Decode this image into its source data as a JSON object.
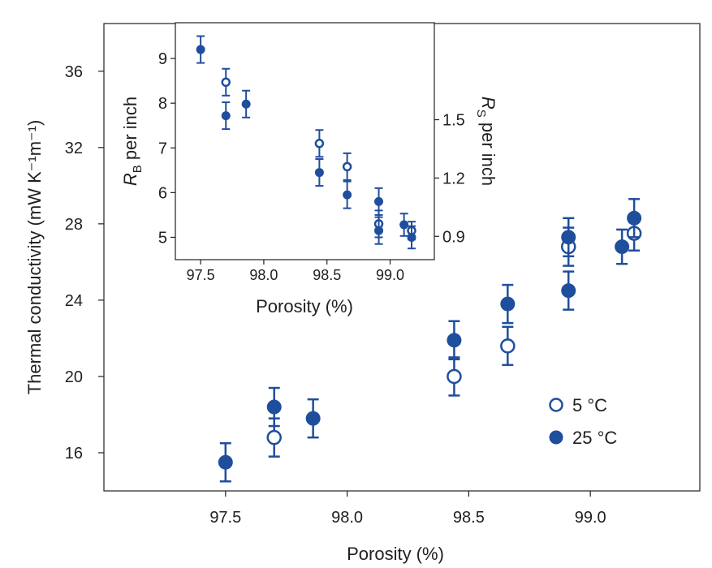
{
  "chart_data": [
    {
      "type": "scatter",
      "xlabel": "Porosity (%)",
      "ylabel": "Thermal conductivity (mW K⁻¹m⁻¹)",
      "xlim": [
        97.0,
        99.45
      ],
      "ylim": [
        14.0,
        38.5
      ],
      "xticks": [
        97.5,
        98.0,
        98.5,
        99.0
      ],
      "xtick_labels": [
        "97.5",
        "98.0",
        "98.5",
        "99.0"
      ],
      "yticks": [
        16,
        20,
        24,
        28,
        32,
        36
      ],
      "ytick_labels": [
        "16",
        "20",
        "24",
        "28",
        "32",
        "36"
      ],
      "legend_position": "bottom-right",
      "series": [
        {
          "name": "5 °C",
          "marker": "open-circle",
          "points": [
            {
              "x": 97.7,
              "y": 16.8,
              "err": 1.0
            },
            {
              "x": 98.44,
              "y": 20.0,
              "err": 1.0
            },
            {
              "x": 98.66,
              "y": 21.6,
              "err": 1.0
            },
            {
              "x": 98.91,
              "y": 26.8,
              "err": 1.0
            },
            {
              "x": 99.18,
              "y": 27.5,
              "err": 0.9
            }
          ]
        },
        {
          "name": "25 °C",
          "marker": "filled-circle",
          "points": [
            {
              "x": 97.5,
              "y": 15.5,
              "err": 1.0
            },
            {
              "x": 97.7,
              "y": 18.4,
              "err": 1.0
            },
            {
              "x": 97.86,
              "y": 17.8,
              "err": 1.0
            },
            {
              "x": 98.44,
              "y": 21.9,
              "err": 1.0
            },
            {
              "x": 98.66,
              "y": 23.8,
              "err": 1.0
            },
            {
              "x": 98.91,
              "y": 24.5,
              "err": 1.0
            },
            {
              "x": 98.91,
              "y": 27.3,
              "err": 1.0
            },
            {
              "x": 99.13,
              "y": 26.8,
              "err": 0.9
            },
            {
              "x": 99.18,
              "y": 28.3,
              "err": 1.0
            }
          ]
        }
      ]
    },
    {
      "type": "scatter",
      "xlabel": "Porosity (%)",
      "ylabel_left": "R",
      "ylabel_left_sub": "B",
      "ylabel_left_rest": " per inch",
      "ylabel_right": "R",
      "ylabel_right_sub": "S",
      "ylabel_right_rest": " per inch",
      "xlim": [
        97.3,
        99.35
      ],
      "ylim_left": [
        4.5,
        9.8
      ],
      "ylim_right": [
        0.78,
        1.999
      ],
      "xticks": [
        97.5,
        98.0,
        98.5,
        99.0
      ],
      "xtick_labels": [
        "97.5",
        "98.0",
        "98.5",
        "99.0"
      ],
      "yticks_left": [
        5,
        6,
        7,
        8,
        9
      ],
      "ytick_labels_left": [
        "5",
        "6",
        "7",
        "8",
        "9"
      ],
      "yticks_right": [
        0.9,
        1.2,
        1.5
      ],
      "ytick_labels_right": [
        "0.9",
        "1.2",
        "1.5"
      ],
      "series": [
        {
          "name": "5 °C",
          "marker": "open-circle",
          "axis": "left",
          "points": [
            {
              "x": 97.7,
              "y": 8.47,
              "err": 0.3
            },
            {
              "x": 98.44,
              "y": 7.1,
              "err": 0.3
            },
            {
              "x": 98.66,
              "y": 6.58,
              "err": 0.3
            },
            {
              "x": 98.91,
              "y": 5.3,
              "err": 0.3
            },
            {
              "x": 99.17,
              "y": 5.15,
              "err": 0.2
            }
          ]
        },
        {
          "name": "25 °C",
          "marker": "filled-circle",
          "axis": "left",
          "points": [
            {
              "x": 97.5,
              "y": 9.2,
              "err": 0.3
            },
            {
              "x": 97.7,
              "y": 7.72,
              "err": 0.3
            },
            {
              "x": 97.86,
              "y": 7.98,
              "err": 0.3
            },
            {
              "x": 98.44,
              "y": 6.45,
              "err": 0.3
            },
            {
              "x": 98.66,
              "y": 5.95,
              "err": 0.3
            },
            {
              "x": 98.91,
              "y": 5.8,
              "err": 0.3
            },
            {
              "x": 98.91,
              "y": 5.15,
              "err": 0.3
            },
            {
              "x": 99.11,
              "y": 5.28,
              "err": 0.25
            },
            {
              "x": 99.17,
              "y": 5.0,
              "err": 0.25
            }
          ]
        }
      ]
    }
  ],
  "colors": {
    "series": "#1f4e9c",
    "axis": "#231f20",
    "text": "#231f20"
  }
}
